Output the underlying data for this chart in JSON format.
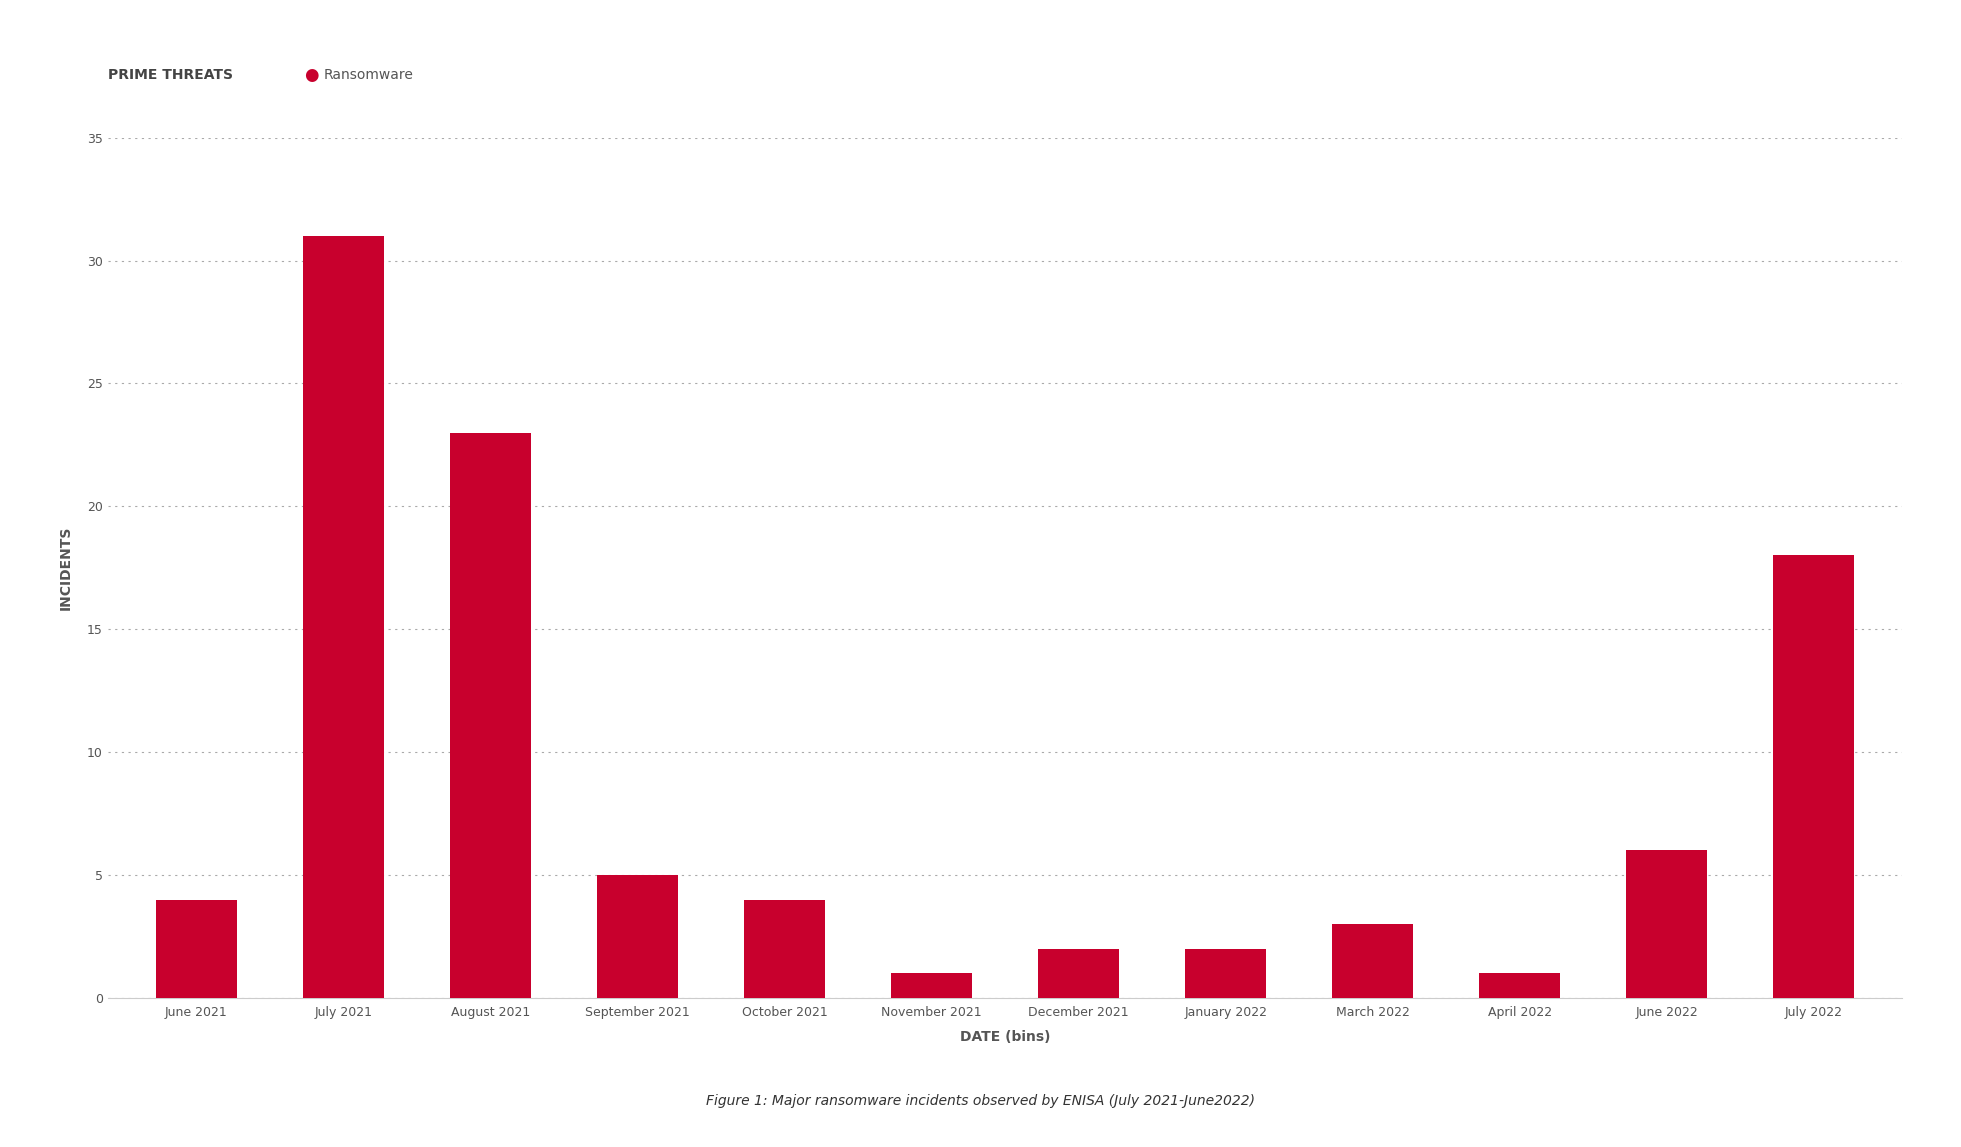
{
  "categories": [
    "June 2021",
    "July 2021",
    "August 2021",
    "September 2021",
    "October 2021",
    "November 2021",
    "December 2021",
    "January 2022",
    "March 2022",
    "April 2022",
    "June 2022",
    "July 2022"
  ],
  "values": [
    4,
    31,
    23,
    5,
    4,
    1,
    2,
    2,
    3,
    1,
    6,
    18
  ],
  "bar_color": "#C8002D",
  "background_color": "#FFFFFF",
  "ylabel": "INCIDENTS",
  "xlabel": "DATE (bins)",
  "ylim": [
    0,
    35
  ],
  "yticks": [
    0,
    5,
    10,
    15,
    20,
    25,
    30,
    35
  ],
  "prime_threats_label": "PRIME THREATS",
  "legend_label": "Ransomware",
  "legend_dot_color": "#C8002D",
  "caption": "Figure 1: Major ransomware incidents observed by ENISA (July 2021-June2022)",
  "grid_color": "#AAAAAA",
  "title_fontsize": 10,
  "axis_label_fontsize": 10,
  "tick_fontsize": 9,
  "caption_fontsize": 10,
  "bar_width": 0.55
}
